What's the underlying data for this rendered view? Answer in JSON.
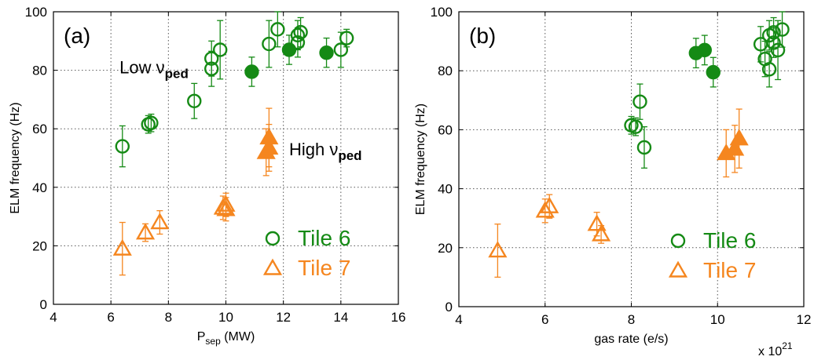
{
  "colors": {
    "tile6": "#158a15",
    "tile7": "#f5861f"
  },
  "chart_data": [
    {
      "type": "scatter",
      "panel_label": "(a)",
      "xlabel": "P",
      "xlabel_sub": "sep",
      "xlabel_unit": " (MW)",
      "ylabel": "ELM frequency (Hz)",
      "xlim": [
        4,
        16
      ],
      "ylim": [
        0,
        100
      ],
      "xticks": [
        "4",
        "6",
        "8",
        "10",
        "12",
        "14",
        "16"
      ],
      "yticks": [
        "0",
        "20",
        "40",
        "60",
        "80",
        "100"
      ],
      "grid": true,
      "legend_position": "bottom-right",
      "annotations": [
        {
          "text": "Low ν",
          "sub": "ped",
          "x": 6.3,
          "y": 79
        },
        {
          "text": "High ν",
          "sub": "ped",
          "x": 12.2,
          "y": 51
        }
      ],
      "series": [
        {
          "name": "Tile 6",
          "marker": "circle-open",
          "color": "#158a15",
          "points": [
            {
              "x": 6.4,
              "y": 54,
              "err": 7
            },
            {
              "x": 7.3,
              "y": 61.5,
              "err": 3
            },
            {
              "x": 7.4,
              "y": 62,
              "err": 3
            },
            {
              "x": 8.9,
              "y": 69.5,
              "err": 6
            },
            {
              "x": 9.5,
              "y": 80.5,
              "err": 6
            },
            {
              "x": 9.5,
              "y": 84,
              "err": 6
            },
            {
              "x": 9.8,
              "y": 87,
              "err": 10
            },
            {
              "x": 11.5,
              "y": 89,
              "err": 8
            },
            {
              "x": 11.8,
              "y": 94,
              "err": 6
            },
            {
              "x": 12.5,
              "y": 89.5,
              "err": 5
            },
            {
              "x": 12.5,
              "y": 92,
              "err": 5
            },
            {
              "x": 12.6,
              "y": 93,
              "err": 5
            },
            {
              "x": 14.0,
              "y": 87,
              "err": 6
            },
            {
              "x": 14.2,
              "y": 91,
              "err": 3
            }
          ]
        },
        {
          "name": "",
          "marker": "circle-filled",
          "color": "#158a15",
          "points": [
            {
              "x": 10.9,
              "y": 79.5,
              "err": 5
            },
            {
              "x": 12.2,
              "y": 87,
              "err": 5
            },
            {
              "x": 13.5,
              "y": 86,
              "err": 5
            }
          ]
        },
        {
          "name": "Tile 7",
          "marker": "triangle-open",
          "color": "#f5861f",
          "points": [
            {
              "x": 6.4,
              "y": 19,
              "err": 9
            },
            {
              "x": 7.2,
              "y": 24.5,
              "err": 3
            },
            {
              "x": 7.7,
              "y": 28,
              "err": 4
            },
            {
              "x": 9.9,
              "y": 33,
              "err": 4
            },
            {
              "x": 10.0,
              "y": 32.5,
              "err": 4
            },
            {
              "x": 10.0,
              "y": 34,
              "err": 4
            }
          ]
        },
        {
          "name": "",
          "marker": "triangle-filled",
          "color": "#f5861f",
          "points": [
            {
              "x": 11.4,
              "y": 52,
              "err": 8
            },
            {
              "x": 11.5,
              "y": 53.5,
              "err": 8
            },
            {
              "x": 11.5,
              "y": 57,
              "err": 10
            }
          ]
        }
      ],
      "legend": [
        {
          "label": "Tile 6",
          "marker": "circle-open",
          "color": "#158a15"
        },
        {
          "label": "Tile 7",
          "marker": "triangle-open",
          "color": "#f5861f"
        }
      ]
    },
    {
      "type": "scatter",
      "panel_label": "(b)",
      "xlabel": "gas rate (e/s)",
      "ylabel": "ELM frequency (Hz)",
      "xlim": [
        4,
        12
      ],
      "ylim": [
        0,
        100
      ],
      "xticks": [
        "4",
        "6",
        "8",
        "10",
        "12"
      ],
      "yticks": [
        "0",
        "20",
        "40",
        "60",
        "80",
        "100"
      ],
      "x_multiplier_base": "x 10",
      "x_multiplier_exp": "21",
      "grid": true,
      "legend_position": "bottom-right",
      "series": [
        {
          "name": "Tile 6",
          "marker": "circle-open",
          "color": "#158a15",
          "points": [
            {
              "x": 8.0,
              "y": 61.5,
              "err": 3
            },
            {
              "x": 8.1,
              "y": 61,
              "err": 3
            },
            {
              "x": 8.2,
              "y": 69.5,
              "err": 6
            },
            {
              "x": 8.3,
              "y": 54,
              "err": 7
            },
            {
              "x": 11.0,
              "y": 89,
              "err": 6
            },
            {
              "x": 11.1,
              "y": 84,
              "err": 6
            },
            {
              "x": 11.2,
              "y": 92,
              "err": 5
            },
            {
              "x": 11.2,
              "y": 80.5,
              "err": 6
            },
            {
              "x": 11.3,
              "y": 89.5,
              "err": 5
            },
            {
              "x": 11.3,
              "y": 93,
              "err": 5
            },
            {
              "x": 11.4,
              "y": 87,
              "err": 10
            },
            {
              "x": 11.5,
              "y": 94,
              "err": 6
            }
          ]
        },
        {
          "name": "",
          "marker": "circle-filled",
          "color": "#158a15",
          "points": [
            {
              "x": 9.5,
              "y": 86,
              "err": 5
            },
            {
              "x": 9.7,
              "y": 87,
              "err": 5
            },
            {
              "x": 9.9,
              "y": 79.5,
              "err": 5
            }
          ]
        },
        {
          "name": "Tile 7",
          "marker": "triangle-open",
          "color": "#f5861f",
          "points": [
            {
              "x": 4.9,
              "y": 19,
              "err": 9
            },
            {
              "x": 6.0,
              "y": 32.5,
              "err": 4
            },
            {
              "x": 6.1,
              "y": 34,
              "err": 4
            },
            {
              "x": 7.2,
              "y": 28,
              "err": 4
            },
            {
              "x": 7.3,
              "y": 24.5,
              "err": 3
            }
          ]
        },
        {
          "name": "",
          "marker": "triangle-filled",
          "color": "#f5861f",
          "points": [
            {
              "x": 10.2,
              "y": 52,
              "err": 8
            },
            {
              "x": 10.4,
              "y": 53.5,
              "err": 8
            },
            {
              "x": 10.5,
              "y": 57,
              "err": 10
            }
          ]
        }
      ],
      "legend": [
        {
          "label": "Tile 6",
          "marker": "circle-open",
          "color": "#158a15"
        },
        {
          "label": "Tile 7",
          "marker": "triangle-open",
          "color": "#f5861f"
        }
      ]
    }
  ]
}
